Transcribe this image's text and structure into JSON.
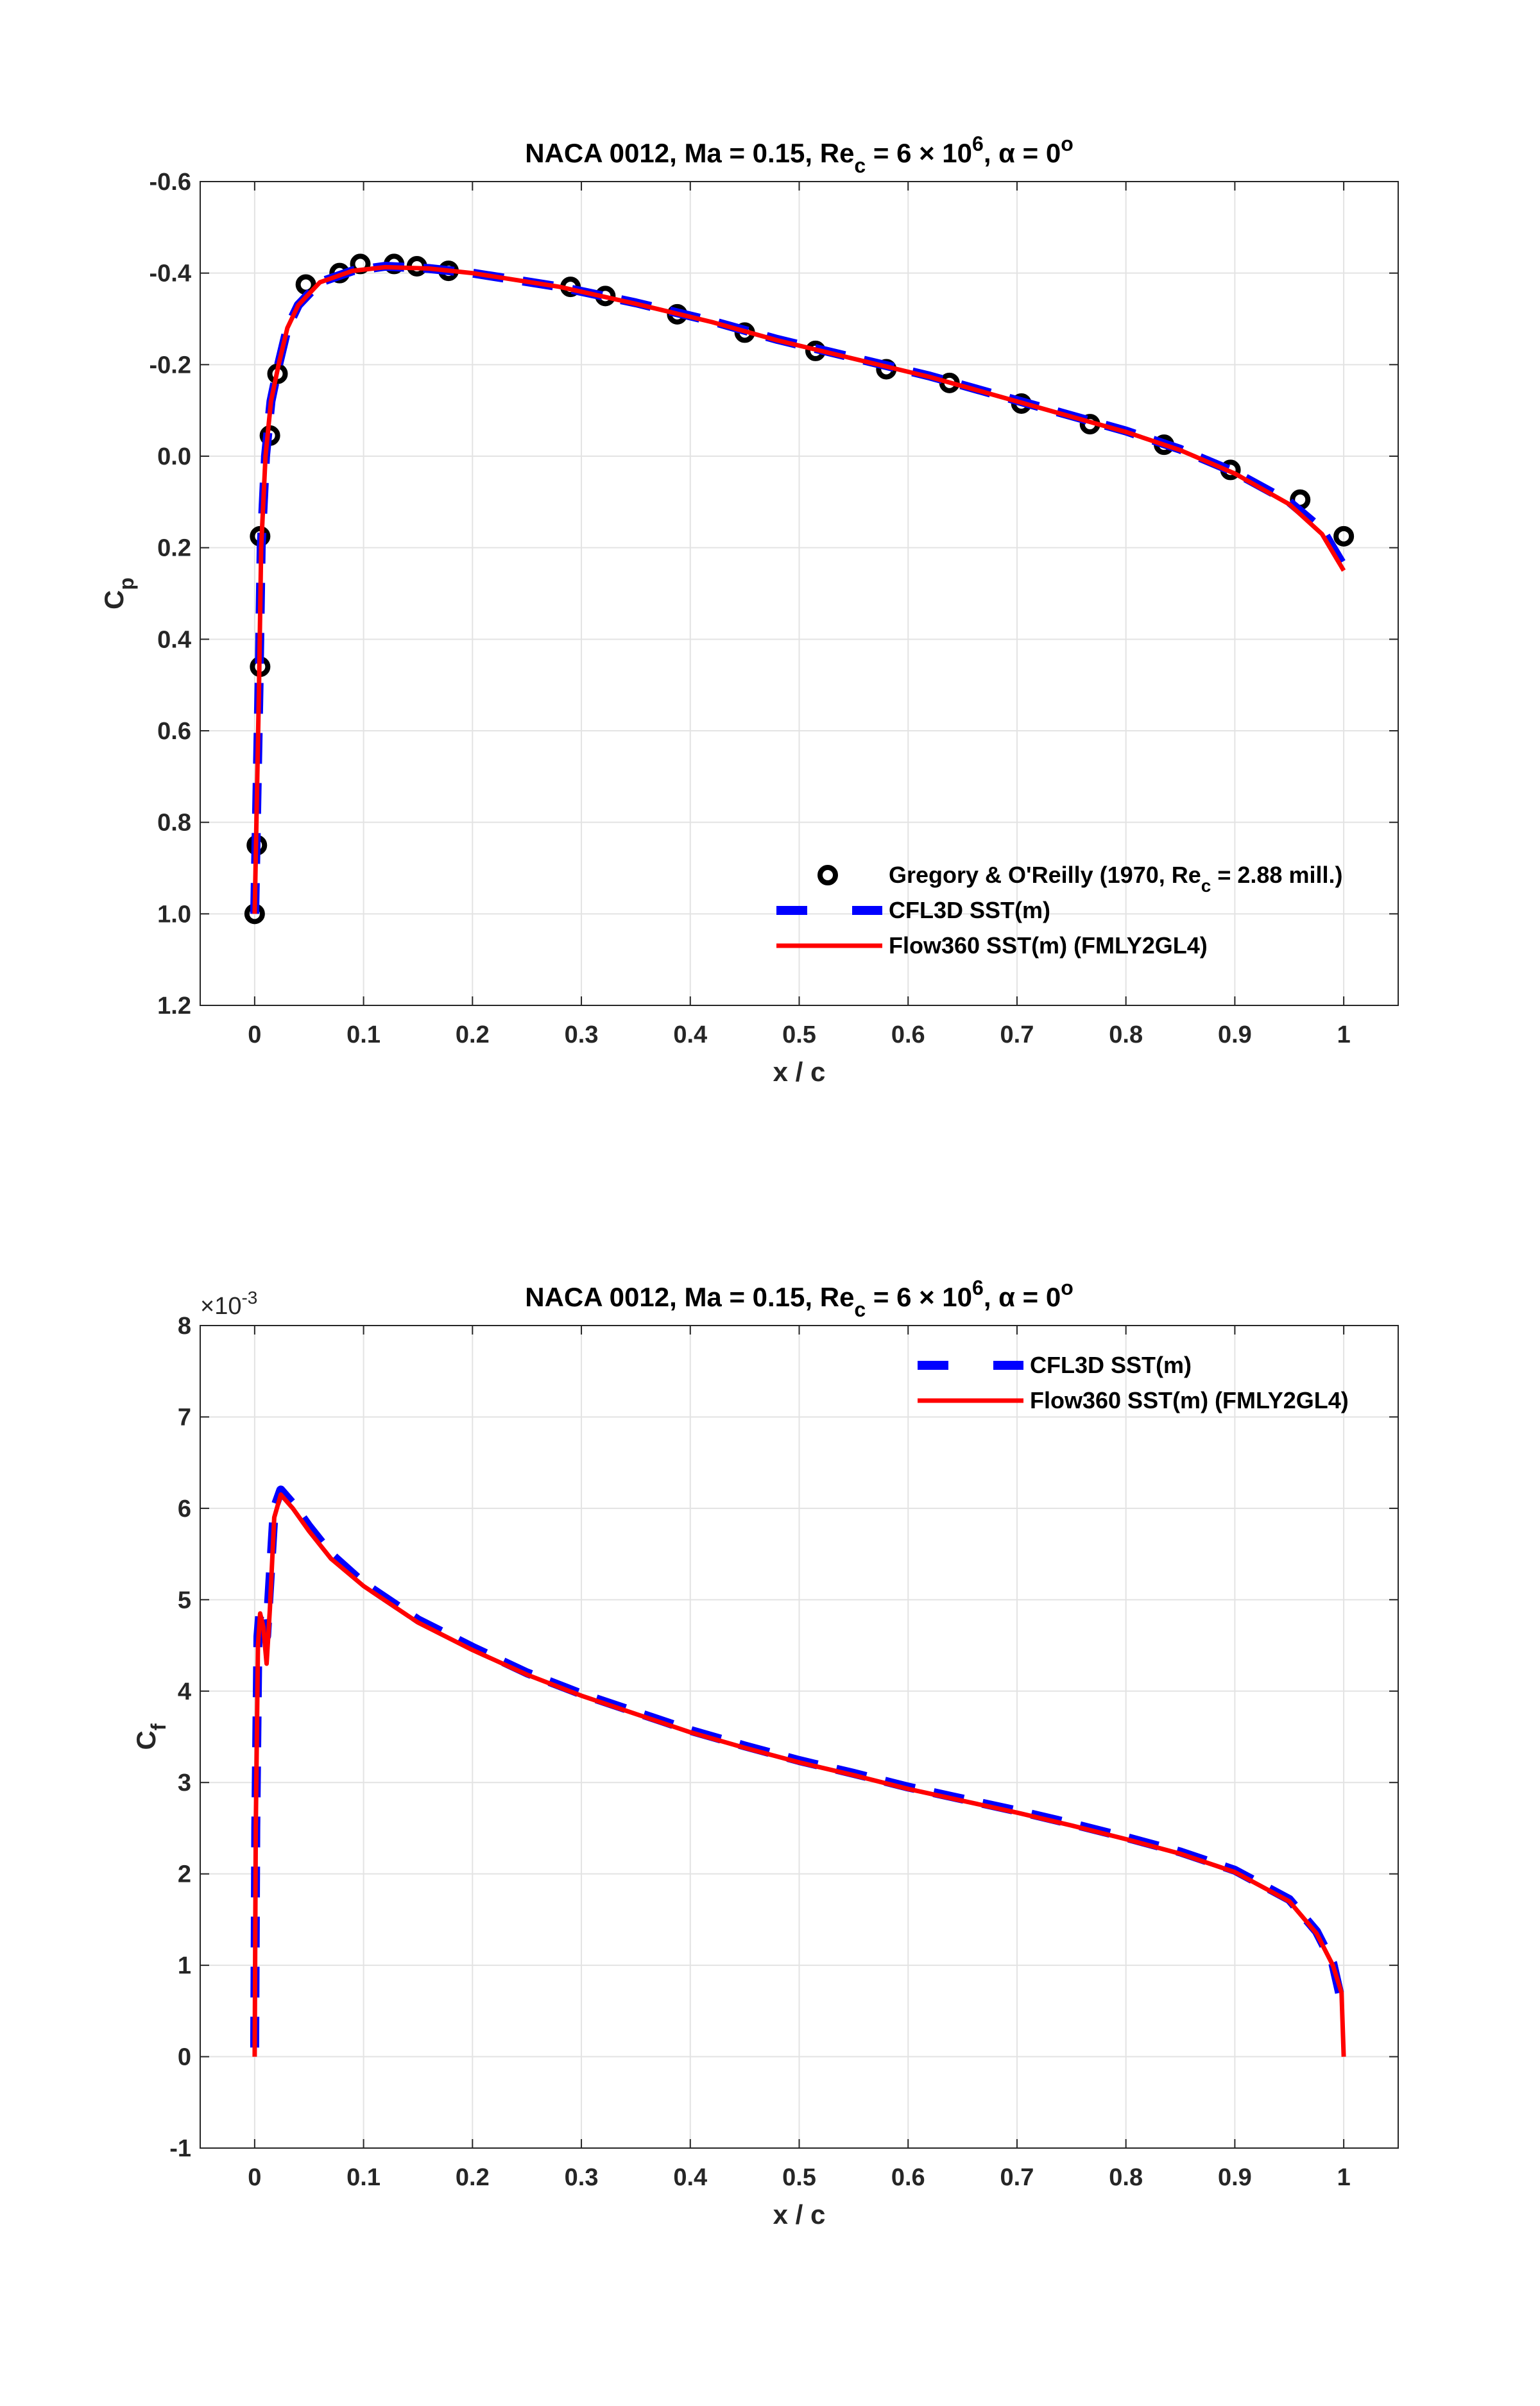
{
  "chart_data": [
    {
      "type": "line",
      "title": "NACA 0012, Ma = 0.15, Re_c = 6 × 10^6, α = 0°",
      "title_parts": {
        "main": "NACA 0012, Ma = 0.15, Re",
        "sub": "c",
        "mid": " = 6 × 10",
        "sup": "6",
        "end": ", α = 0",
        "deg": "o"
      },
      "xlabel": "x / c",
      "ylabel": "C",
      "ylabel_sub": "p",
      "xlim": [
        -0.05,
        1.05
      ],
      "ylim": [
        -0.6,
        1.2
      ],
      "y_reversed": true,
      "grid": true,
      "legend_position": "bottom-right",
      "xticks": [
        "0",
        "0.1",
        "0.2",
        "0.3",
        "0.4",
        "0.5",
        "0.6",
        "0.7",
        "0.8",
        "0.9",
        "1"
      ],
      "yticks": [
        "-0.6",
        "-0.4",
        "-0.2",
        "0.0",
        "0.2",
        "0.4",
        "0.6",
        "0.8",
        "1.0",
        "1.2"
      ],
      "series": [
        {
          "name": "Gregory & O'Reilly (1970, Re_c = 2.88 mill.)",
          "legend_parts": {
            "a": "Gregory & O'Reilly (1970, Re",
            "sub": "c",
            "b": " = 2.88 mill.)"
          },
          "style": "circle",
          "color": "#000000",
          "x": [
            0,
            0.002,
            0.005,
            0.005,
            0.014,
            0.021,
            0.047,
            0.078,
            0.097,
            0.128,
            0.149,
            0.178,
            0.29,
            0.322,
            0.388,
            0.45,
            0.515,
            0.58,
            0.638,
            0.704,
            0.767,
            0.835,
            0.896,
            0.96,
            1.0
          ],
          "y": [
            1.0,
            0.85,
            0.46,
            0.175,
            -0.045,
            -0.18,
            -0.375,
            -0.4,
            -0.42,
            -0.42,
            -0.415,
            -0.405,
            -0.37,
            -0.35,
            -0.31,
            -0.27,
            -0.23,
            -0.19,
            -0.16,
            -0.115,
            -0.07,
            -0.025,
            0.03,
            0.095,
            0.175
          ]
        },
        {
          "name": "CFL3D SST(m)",
          "style": "dashed",
          "color": "#0000ff",
          "x": [
            0,
            0.002,
            0.004,
            0.006,
            0.01,
            0.015,
            0.022,
            0.03,
            0.04,
            0.06,
            0.09,
            0.12,
            0.16,
            0.2,
            0.28,
            0.35,
            0.42,
            0.48,
            0.55,
            0.62,
            0.68,
            0.74,
            0.8,
            0.85,
            0.9,
            0.95,
            0.98,
            1.0
          ],
          "y": [
            1.0,
            0.75,
            0.5,
            0.2,
            0.0,
            -0.12,
            -0.2,
            -0.28,
            -0.33,
            -0.38,
            -0.405,
            -0.415,
            -0.41,
            -0.4,
            -0.37,
            -0.335,
            -0.295,
            -0.255,
            -0.215,
            -0.175,
            -0.135,
            -0.095,
            -0.055,
            -0.015,
            0.035,
            0.1,
            0.16,
            0.24
          ]
        },
        {
          "name": "Flow360 SST(m) (FMLY2GL4)",
          "style": "solid",
          "color": "#ff0000",
          "x": [
            0,
            0.002,
            0.004,
            0.006,
            0.01,
            0.015,
            0.022,
            0.03,
            0.04,
            0.06,
            0.09,
            0.12,
            0.16,
            0.2,
            0.28,
            0.35,
            0.42,
            0.48,
            0.55,
            0.62,
            0.68,
            0.74,
            0.8,
            0.85,
            0.9,
            0.95,
            0.98,
            1.0
          ],
          "y": [
            1.0,
            0.75,
            0.5,
            0.2,
            0.0,
            -0.12,
            -0.2,
            -0.28,
            -0.33,
            -0.38,
            -0.405,
            -0.413,
            -0.41,
            -0.4,
            -0.37,
            -0.333,
            -0.293,
            -0.253,
            -0.213,
            -0.173,
            -0.133,
            -0.093,
            -0.053,
            -0.013,
            0.038,
            0.105,
            0.17,
            0.25
          ]
        }
      ]
    },
    {
      "type": "line",
      "title": "NACA 0012, Ma = 0.15, Re_c = 6 × 10^6, α = 0°",
      "title_parts": {
        "main": "NACA 0012, Ma = 0.15, Re",
        "sub": "c",
        "mid": " = 6 × 10",
        "sup": "6",
        "end": ", α = 0",
        "deg": "o"
      },
      "xlabel": "x / c",
      "ylabel": "C",
      "ylabel_sub": "f",
      "y_exponent": {
        "base": "×10",
        "exp": "-3"
      },
      "xlim": [
        -0.05,
        1.05
      ],
      "ylim": [
        -1,
        8
      ],
      "grid": true,
      "legend_position": "top-right",
      "xticks": [
        "0",
        "0.1",
        "0.2",
        "0.3",
        "0.4",
        "0.5",
        "0.6",
        "0.7",
        "0.8",
        "0.9",
        "1"
      ],
      "yticks": [
        "-1",
        "0",
        "1",
        "2",
        "3",
        "4",
        "5",
        "6",
        "7",
        "8"
      ],
      "series": [
        {
          "name": "CFL3D SST(m)",
          "style": "dashed",
          "color": "#0000ff",
          "x": [
            0,
            0.001,
            0.003,
            0.005,
            0.008,
            0.011,
            0.014,
            0.018,
            0.024,
            0.035,
            0.05,
            0.07,
            0.1,
            0.15,
            0.2,
            0.25,
            0.3,
            0.35,
            0.4,
            0.45,
            0.5,
            0.55,
            0.6,
            0.65,
            0.7,
            0.75,
            0.8,
            0.85,
            0.9,
            0.95,
            0.975,
            0.99,
            0.998,
            1.0
          ],
          "y": [
            0.1,
            2.5,
            4.6,
            4.9,
            4.85,
            4.6,
            5.2,
            6.0,
            6.2,
            6.05,
            5.8,
            5.5,
            5.18,
            4.78,
            4.48,
            4.2,
            3.97,
            3.77,
            3.57,
            3.4,
            3.24,
            3.1,
            2.95,
            2.82,
            2.69,
            2.55,
            2.4,
            2.24,
            2.04,
            1.72,
            1.37,
            1.02,
            0.6,
            0.6
          ]
        },
        {
          "name": "Flow360 SST(m) (FMLY2GL4)",
          "style": "solid",
          "color": "#ff0000",
          "x": [
            0,
            0.001,
            0.003,
            0.005,
            0.008,
            0.011,
            0.014,
            0.018,
            0.024,
            0.035,
            0.05,
            0.07,
            0.1,
            0.15,
            0.2,
            0.25,
            0.3,
            0.35,
            0.4,
            0.45,
            0.5,
            0.55,
            0.6,
            0.65,
            0.7,
            0.75,
            0.8,
            0.85,
            0.9,
            0.95,
            0.975,
            0.99,
            0.998,
            1.0
          ],
          "y": [
            0,
            2.5,
            4.5,
            4.85,
            4.7,
            4.3,
            4.9,
            5.9,
            6.15,
            6.0,
            5.75,
            5.45,
            5.15,
            4.75,
            4.45,
            4.18,
            3.95,
            3.75,
            3.55,
            3.38,
            3.22,
            3.08,
            2.93,
            2.8,
            2.67,
            2.53,
            2.38,
            2.22,
            2.02,
            1.7,
            1.35,
            1.0,
            0.7,
            0
          ]
        }
      ]
    }
  ]
}
